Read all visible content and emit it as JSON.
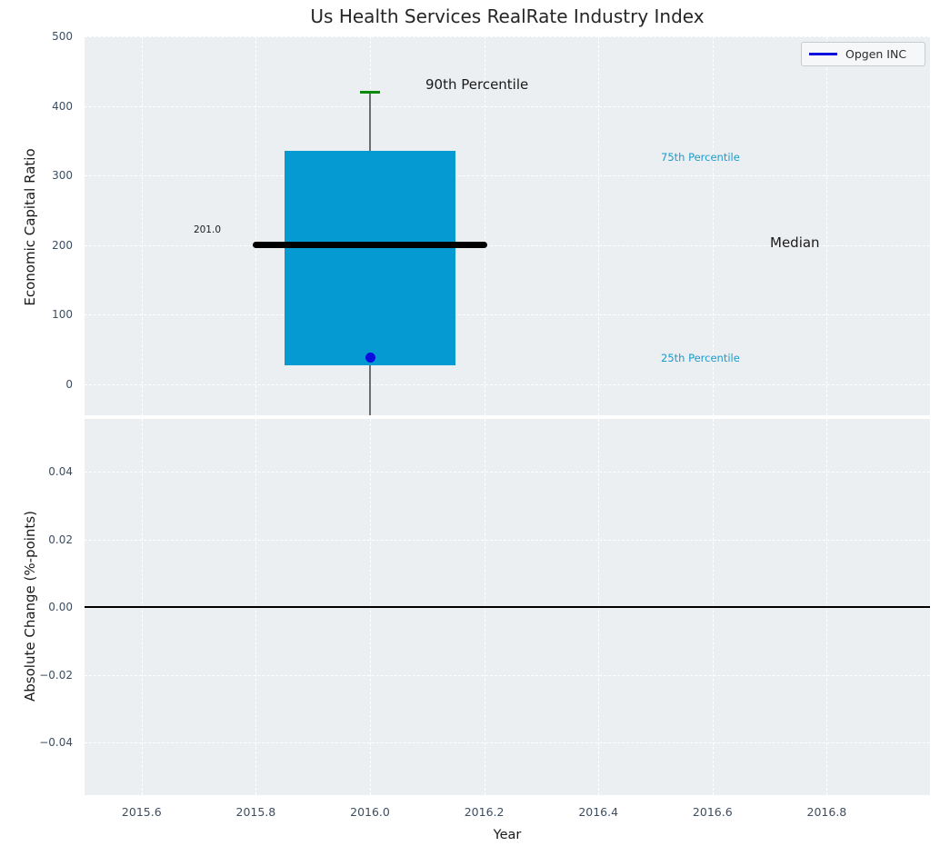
{
  "title": "Us Health Services RealRate Industry Index",
  "legend": {
    "label": "Opgen INC"
  },
  "colors": {
    "axes_bg": "#eceff1",
    "grid": "#ffffff",
    "tick_text": "#3e4e60",
    "title_text": "#262626",
    "box_fill": "#059bd2",
    "median_line": "#000000",
    "p90_cap": "#0a8a0a",
    "whisker": "#6e6e6e",
    "company_point": "#0d0ddd",
    "legend_line": "#0d0ddd",
    "percentile_text": "#1c9bcc",
    "annotation_text": "#1a1a1a",
    "zero_line": "#000000"
  },
  "top_axis": {
    "ylabel": "Economic Capital Ratio",
    "yticks": [
      {
        "value": 500,
        "label": "500"
      },
      {
        "value": 400,
        "label": "400"
      },
      {
        "value": 300,
        "label": "300"
      },
      {
        "value": 200,
        "label": "200"
      },
      {
        "value": 100,
        "label": "100"
      },
      {
        "value": 0,
        "label": "0"
      }
    ]
  },
  "bottom_axis": {
    "ylabel": "Absolute Change (%-points)",
    "xlabel": "Year",
    "yticks": [
      {
        "value": 0.04,
        "label": "0.04"
      },
      {
        "value": 0.02,
        "label": "0.02"
      },
      {
        "value": 0.0,
        "label": "0.00"
      },
      {
        "value": -0.02,
        "label": "−0.02"
      },
      {
        "value": -0.04,
        "label": "−0.04"
      }
    ],
    "xticks": [
      {
        "value": 2015.6,
        "label": "2015.6"
      },
      {
        "value": 2015.8,
        "label": "2015.8"
      },
      {
        "value": 2016.0,
        "label": "2016.0"
      },
      {
        "value": 2016.2,
        "label": "2016.2"
      },
      {
        "value": 2016.4,
        "label": "2016.4"
      },
      {
        "value": 2016.6,
        "label": "2016.6"
      },
      {
        "value": 2016.8,
        "label": "2016.8"
      }
    ]
  },
  "annotations": {
    "p90_label": "90th Percentile",
    "p75_label": "75th Percentile",
    "median_label": "Median",
    "p25_label": "25th Percentile",
    "median_value_label": "201.0"
  },
  "chart_data": [
    {
      "type": "box",
      "title": "Us Health Services RealRate Industry Index",
      "ylabel": "Economic Capital Ratio",
      "xlim": [
        2015.5,
        2016.98
      ],
      "ylim": [
        -46,
        500
      ],
      "grid": true,
      "legend_position": "upper right",
      "box": {
        "x_center": 2016.0,
        "box_width_years": 0.3,
        "median_line_width_years": 0.41,
        "p90_cap_width_years": 0.035,
        "p25": 27,
        "median": 201,
        "p75": 335,
        "p90": 420,
        "median_value_label": "201.0",
        "whisker_top": 420,
        "whisker_clipped_below_axis": true
      },
      "series": [
        {
          "name": "Opgen INC",
          "type": "scatter",
          "x": 2016.0,
          "y": 39
        }
      ],
      "annotations": [
        "90th Percentile",
        "75th Percentile",
        "Median",
        "25th Percentile",
        "201.0"
      ]
    },
    {
      "type": "line",
      "xlabel": "Year",
      "ylabel": "Absolute Change (%-points)",
      "xlim": [
        2015.5,
        2016.98
      ],
      "ylim": [
        -0.0556,
        0.0556
      ],
      "grid": true,
      "zero_line": true,
      "series": []
    }
  ]
}
